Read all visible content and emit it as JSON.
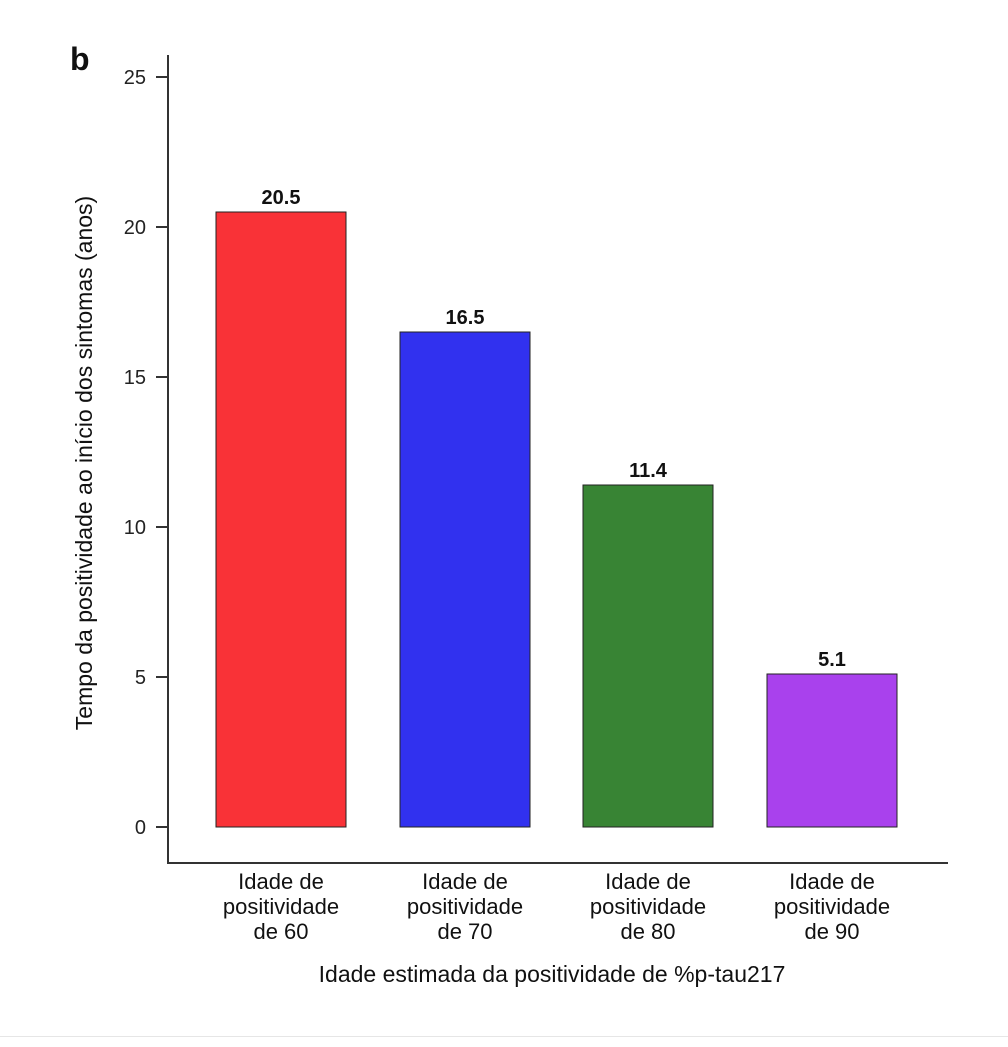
{
  "panel_label": "b",
  "chart_data": {
    "type": "bar",
    "categories": [
      [
        "Idade de",
        "positividade",
        "de 60"
      ],
      [
        "Idade de",
        "positividade",
        "de 70"
      ],
      [
        "Idade de",
        "positividade",
        "de 80"
      ],
      [
        "Idade de",
        "positividade",
        "de 90"
      ]
    ],
    "values": [
      20.5,
      16.5,
      11.4,
      5.1
    ],
    "data_labels": [
      "20.5",
      "16.5",
      "11.4",
      "5.1"
    ],
    "colors": [
      "#f93237",
      "#3131ef",
      "#388434",
      "#a941ed"
    ],
    "xlabel": "Idade estimada da positividade de %p-tau217",
    "ylabel": "Tempo da positividade ao início dos sintomas (anos)",
    "yticks": [
      "0",
      "5",
      "10",
      "15",
      "20",
      "25"
    ],
    "ytick_values": [
      0,
      5,
      10,
      15,
      20,
      25
    ],
    "ylim": [
      0,
      25
    ],
    "grid": false,
    "legend": "none"
  }
}
